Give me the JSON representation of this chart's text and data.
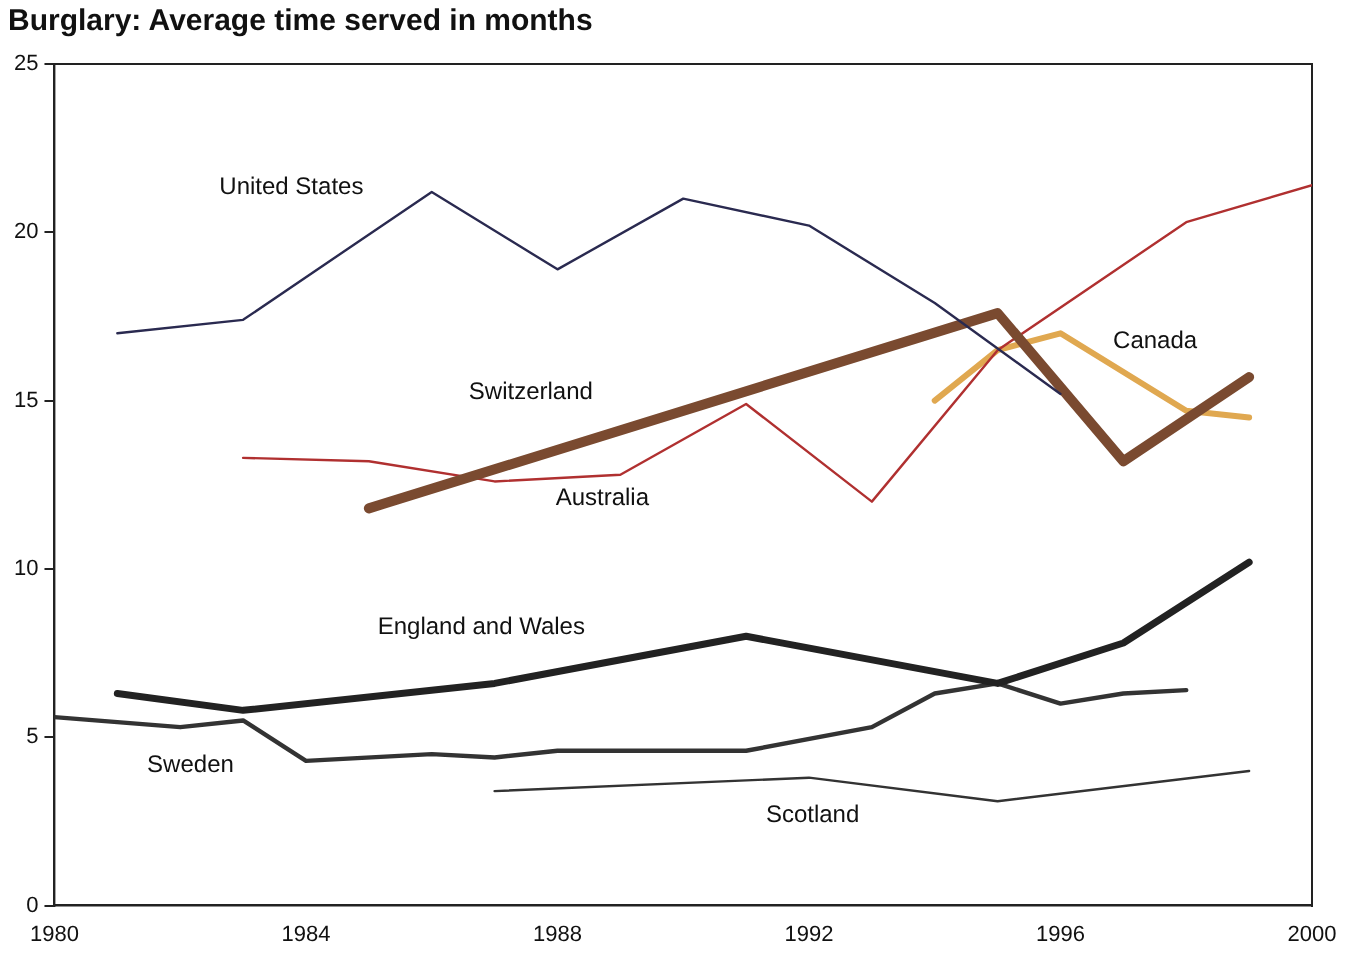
{
  "chart_data": {
    "type": "line",
    "title": "Burglary: Average time served in months",
    "xlim": [
      1980,
      2000
    ],
    "xticks": [
      1980,
      1984,
      1988,
      1992,
      1996,
      2000
    ],
    "ylim": [
      0,
      25
    ],
    "yticks": [
      0,
      5,
      10,
      15,
      20,
      25
    ],
    "grid": false,
    "legend": false,
    "marker": "none",
    "series": [
      {
        "name": "United States",
        "color": "#2a2a50",
        "x": [
          1981,
          1983,
          1986,
          1988,
          1990,
          1992,
          1994,
          1996
        ],
        "values": [
          17.0,
          17.4,
          21.2,
          18.9,
          21.0,
          20.2,
          17.9,
          15.2
        ]
      },
      {
        "name": "Switzerland",
        "color": "#7a4a30",
        "x": [
          1985,
          1995,
          1997,
          1999
        ],
        "values": [
          11.8,
          17.6,
          13.2,
          15.7
        ]
      },
      {
        "name": "Australia",
        "color": "#b03030",
        "x": [
          1983,
          1985,
          1987,
          1989,
          1991,
          1993,
          1995,
          1998,
          2000
        ],
        "values": [
          13.3,
          13.2,
          12.6,
          12.8,
          14.9,
          12.0,
          16.5,
          20.3,
          21.4
        ]
      },
      {
        "name": "Canada",
        "color": "#e0a850",
        "x": [
          1994,
          1995,
          1996,
          1998,
          1999
        ],
        "values": [
          15.0,
          16.5,
          17.0,
          14.7,
          14.5
        ]
      },
      {
        "name": "England and Wales",
        "color": "#222222",
        "x": [
          1981,
          1983,
          1987,
          1991,
          1995,
          1997,
          1999
        ],
        "values": [
          6.3,
          5.8,
          6.6,
          8.0,
          6.6,
          7.8,
          10.2
        ]
      },
      {
        "name": "Sweden",
        "color": "#333333",
        "x": [
          1980,
          1982,
          1983,
          1984,
          1986,
          1987,
          1988,
          1991,
          1993,
          1994,
          1995,
          1996,
          1997,
          1998
        ],
        "values": [
          5.6,
          5.3,
          5.5,
          4.3,
          4.5,
          4.4,
          4.6,
          4.6,
          5.3,
          6.3,
          6.6,
          6.0,
          6.3,
          6.4
        ]
      },
      {
        "name": "Scotland",
        "color": "#333333",
        "x": [
          1987,
          1992,
          1995,
          1999
        ],
        "values": [
          3.4,
          3.8,
          3.1,
          4.0
        ]
      }
    ]
  }
}
